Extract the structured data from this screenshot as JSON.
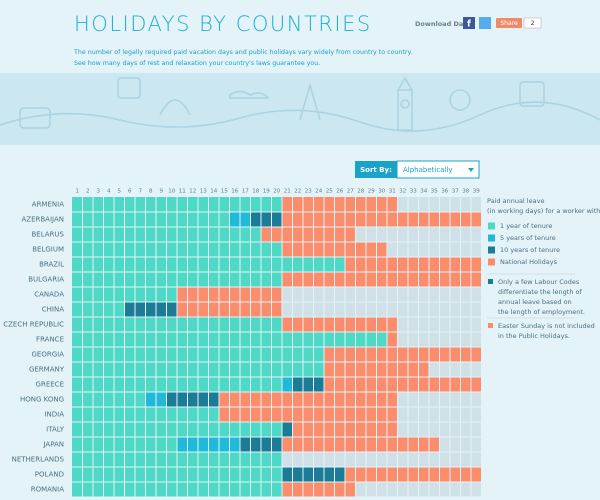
{
  "header": {
    "title": "HOLIDAYS BY COUNTRIES",
    "download": "Download Data",
    "share": "Share",
    "share_count": "2",
    "subtitle": [
      "The number of legally required paid vacation days and public holidays vary widely from country to country.",
      "See how many days of rest and relaxation your country's laws guarantee you."
    ]
  },
  "controls": {
    "sort_label": "Sort By:",
    "sort_value": "Alphabetically"
  },
  "legend_title": [
    "Paid annual leave",
    "(in working days) for a worker with"
  ],
  "notes": [
    [
      "Only a few Labour Codes",
      "differentiate the length of",
      "annual leave based on",
      "the length of employment."
    ],
    [
      "Easter Sunday is not included",
      "in the Public Holidays."
    ]
  ],
  "chart_data": {
    "type": "waffle",
    "categories": [
      "ARMENIA",
      "AZERBAIJAN",
      "BELARUS",
      "BELGIUM",
      "BRAZIL",
      "BULGARIA",
      "CANADA",
      "CHINA",
      "CZECH REPUBLIC",
      "FRANCE",
      "GEORGIA",
      "GERMANY",
      "GREECE",
      "HONG KONG",
      "INDIA",
      "ITALY",
      "JAPAN",
      "NETHERLANDS",
      "POLAND",
      "ROMANIA"
    ],
    "xlim": [
      0,
      39
    ],
    "xticks": [
      1,
      2,
      3,
      4,
      5,
      6,
      7,
      8,
      9,
      10,
      11,
      12,
      13,
      14,
      15,
      16,
      17,
      18,
      19,
      20,
      21,
      22,
      23,
      24,
      25,
      26,
      27,
      28,
      29,
      30,
      31,
      32,
      33,
      34,
      35,
      36,
      37,
      38,
      39
    ],
    "series": [
      {
        "name": "1 year of tenure",
        "color": "#4ed9c6",
        "values": [
          20,
          15,
          18,
          20,
          26,
          20,
          10,
          5,
          20,
          30,
          24,
          24,
          20,
          7,
          14,
          20,
          10,
          20,
          20,
          20
        ]
      },
      {
        "name": "5 years of tenure",
        "color": "#1fb9d9",
        "values": [
          0,
          2,
          0,
          0,
          0,
          0,
          0,
          0,
          0,
          0,
          0,
          0,
          1,
          2,
          0,
          0,
          6,
          0,
          0,
          0
        ]
      },
      {
        "name": "10 years of tenure",
        "color": "#1c7c98",
        "values": [
          0,
          3,
          0,
          0,
          0,
          0,
          0,
          5,
          0,
          0,
          0,
          0,
          3,
          5,
          0,
          1,
          4,
          0,
          6,
          0
        ]
      },
      {
        "name": "National Holidays",
        "color": "#fb8d6c",
        "values": [
          11,
          19,
          9,
          10,
          13,
          19,
          10,
          10,
          11,
          1,
          15,
          10,
          15,
          17,
          17,
          10,
          15,
          0,
          13,
          7
        ]
      }
    ]
  }
}
